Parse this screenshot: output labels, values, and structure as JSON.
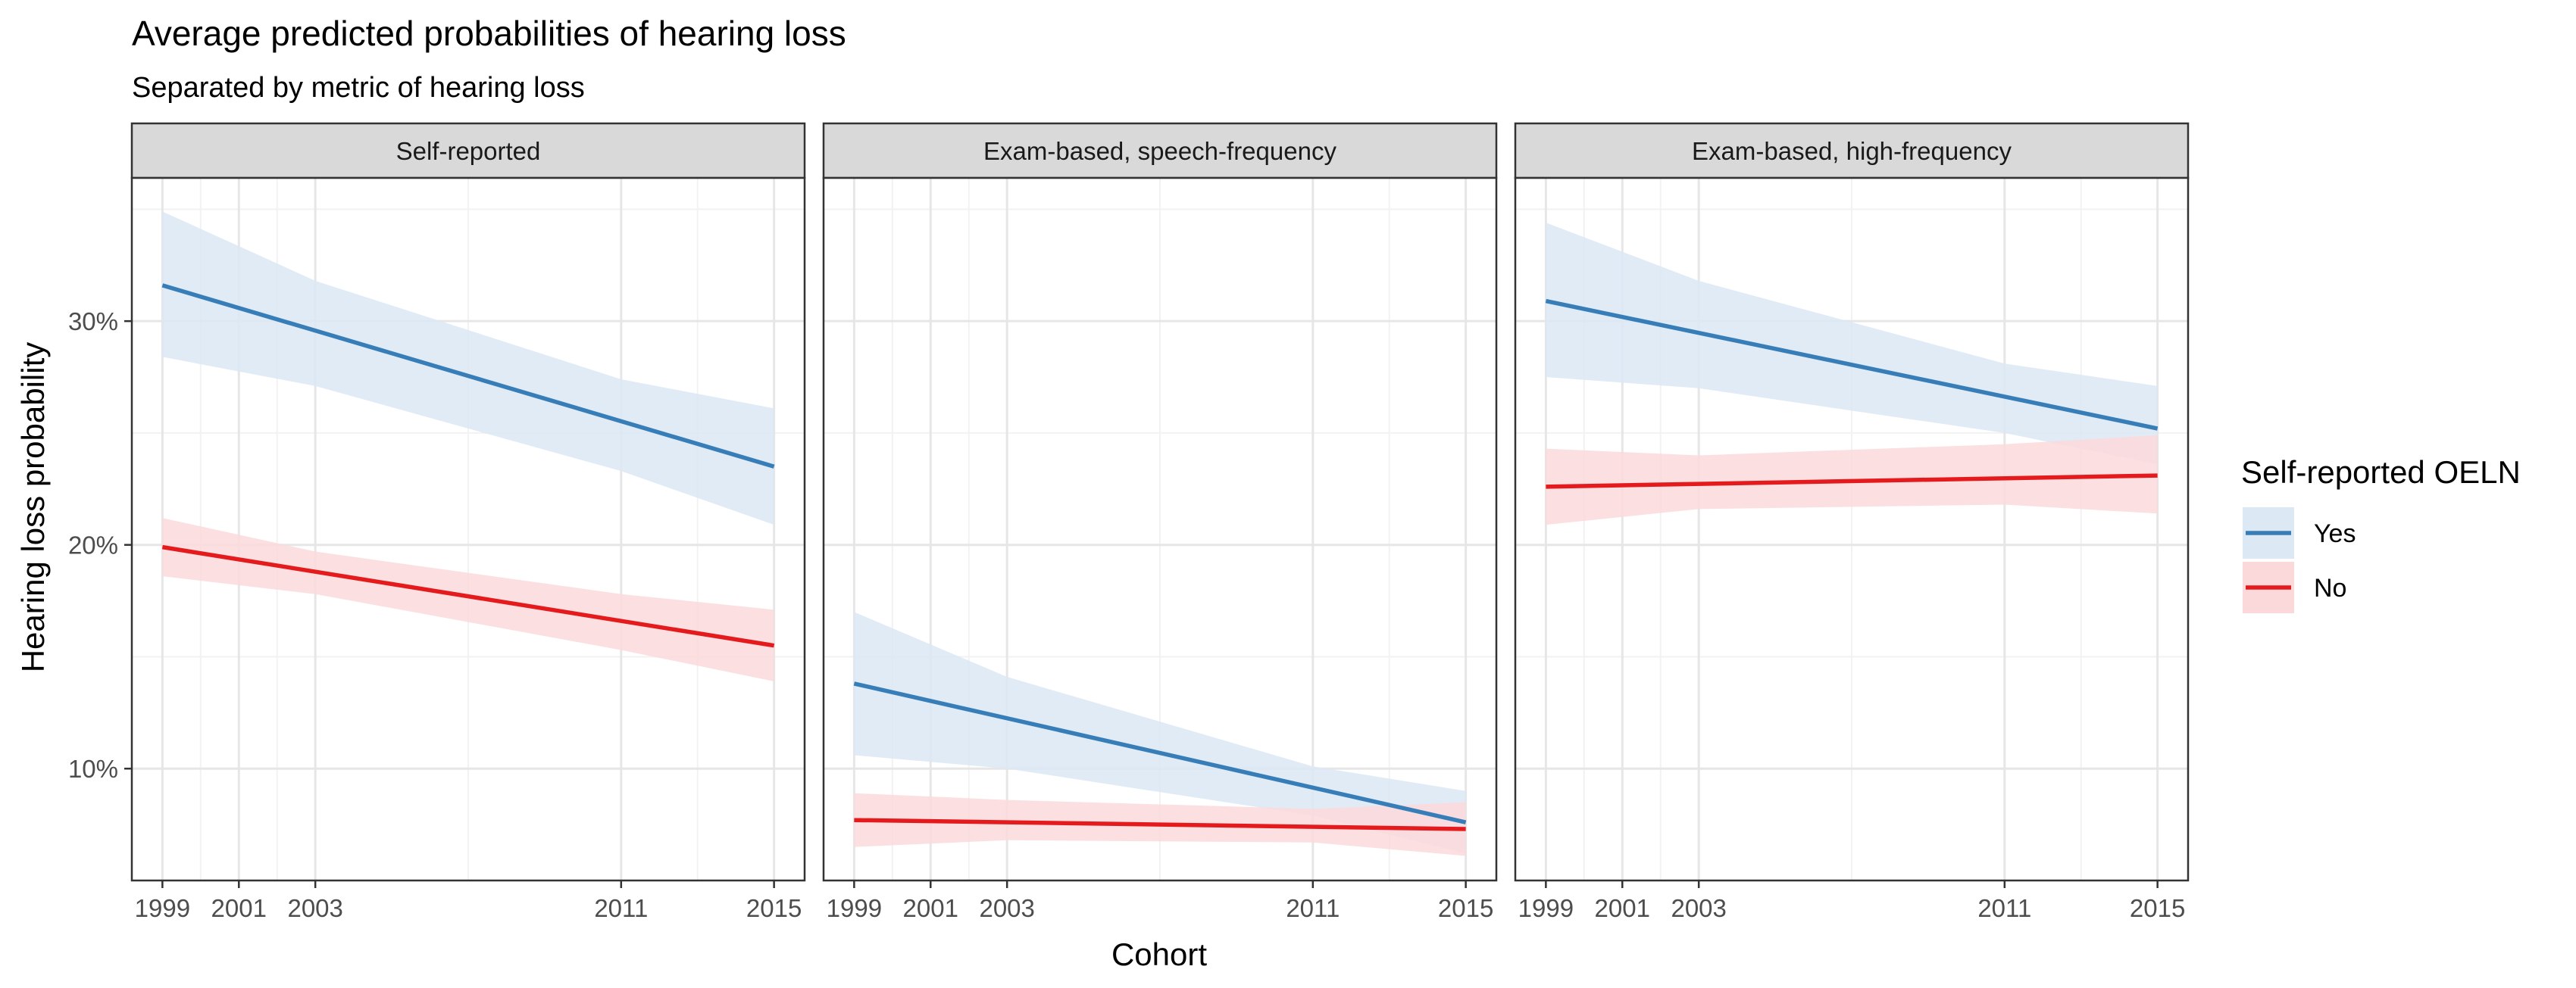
{
  "chart_data": {
    "type": "line",
    "title": "Average predicted probabilities of hearing loss",
    "subtitle": "Separated by metric of hearing loss",
    "xlabel": "Cohort",
    "ylabel": "Hearing loss probability",
    "x_ticks": [
      1999,
      2001,
      2003,
      2011,
      2015
    ],
    "xlim": [
      1998.2,
      2015.8
    ],
    "y_ticks": [
      0.1,
      0.2,
      0.3
    ],
    "y_tick_labels": [
      "10%",
      "20%",
      "30%"
    ],
    "ylim": [
      0.05,
      0.364
    ],
    "grid": true,
    "legend": {
      "title": "Self-reported OELN",
      "position": "right",
      "entries": [
        {
          "label": "Yes",
          "color": "#377EB8",
          "fill": "#DCE8F4"
        },
        {
          "label": "No",
          "color": "#E41A1C",
          "fill": "#FBD9DA"
        }
      ]
    },
    "panels": [
      {
        "strip": "Self-reported",
        "series": [
          {
            "name": "Yes",
            "x": [
              1999,
              2015
            ],
            "y": [
              0.316,
              0.235
            ],
            "ci_x": [
              1999,
              2003,
              2011,
              2015
            ],
            "ci_low": [
              0.284,
              0.271,
              0.233,
              0.209
            ],
            "ci_high": [
              0.349,
              0.318,
              0.274,
              0.261
            ]
          },
          {
            "name": "No",
            "x": [
              1999,
              2015
            ],
            "y": [
              0.199,
              0.155
            ],
            "ci_x": [
              1999,
              2003,
              2011,
              2015
            ],
            "ci_low": [
              0.186,
              0.178,
              0.153,
              0.139
            ],
            "ci_high": [
              0.212,
              0.197,
              0.178,
              0.171
            ]
          }
        ]
      },
      {
        "strip": "Exam-based, speech-frequency",
        "series": [
          {
            "name": "Yes",
            "x": [
              1999,
              2015
            ],
            "y": [
              0.138,
              0.076
            ],
            "ci_x": [
              1999,
              2003,
              2011,
              2015
            ],
            "ci_low": [
              0.106,
              0.1,
              0.079,
              0.062
            ],
            "ci_high": [
              0.17,
              0.141,
              0.101,
              0.09
            ]
          },
          {
            "name": "No",
            "x": [
              1999,
              2015
            ],
            "y": [
              0.077,
              0.073
            ],
            "ci_x": [
              1999,
              2003,
              2011,
              2015
            ],
            "ci_low": [
              0.065,
              0.068,
              0.067,
              0.061
            ],
            "ci_high": [
              0.089,
              0.086,
              0.082,
              0.085
            ]
          }
        ]
      },
      {
        "strip": "Exam-based, high-frequency",
        "series": [
          {
            "name": "Yes",
            "x": [
              1999,
              2015
            ],
            "y": [
              0.309,
              0.252
            ],
            "ci_x": [
              1999,
              2003,
              2011,
              2015
            ],
            "ci_low": [
              0.275,
              0.27,
              0.25,
              0.236
            ],
            "ci_high": [
              0.344,
              0.318,
              0.281,
              0.271
            ]
          },
          {
            "name": "No",
            "x": [
              1999,
              2015
            ],
            "y": [
              0.226,
              0.231
            ],
            "ci_x": [
              1999,
              2003,
              2011,
              2015
            ],
            "ci_low": [
              0.209,
              0.216,
              0.218,
              0.214
            ],
            "ci_high": [
              0.243,
              0.24,
              0.245,
              0.249
            ]
          }
        ]
      }
    ]
  }
}
